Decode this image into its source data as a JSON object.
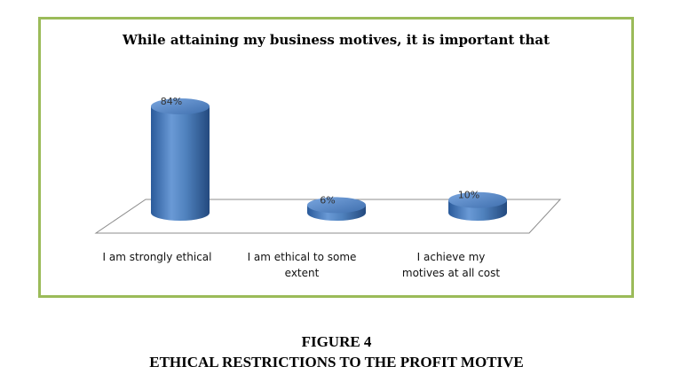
{
  "chart_data": {
    "type": "bar",
    "title": "While attaining my business motives, it is important that",
    "categories": [
      "I am strongly ethical",
      "I am ethical to some extent",
      "I achieve my motives at all cost"
    ],
    "category_lines": [
      [
        "I am strongly ethical"
      ],
      [
        "I am ethical to some",
        "extent"
      ],
      [
        "I achieve my",
        "motives at all cost"
      ]
    ],
    "values": [
      84,
      6,
      10
    ],
    "data_labels": [
      "84%",
      "6%",
      "10%"
    ],
    "ylim": [
      0,
      100
    ],
    "grid": false,
    "bar_shape": "cylinder",
    "bar_color": "#4f81bd"
  },
  "frame_color": "#9bbb59",
  "figure": {
    "number": "FIGURE 4",
    "title": "ETHICAL RESTRICTIONS TO THE PROFIT MOTIVE"
  }
}
